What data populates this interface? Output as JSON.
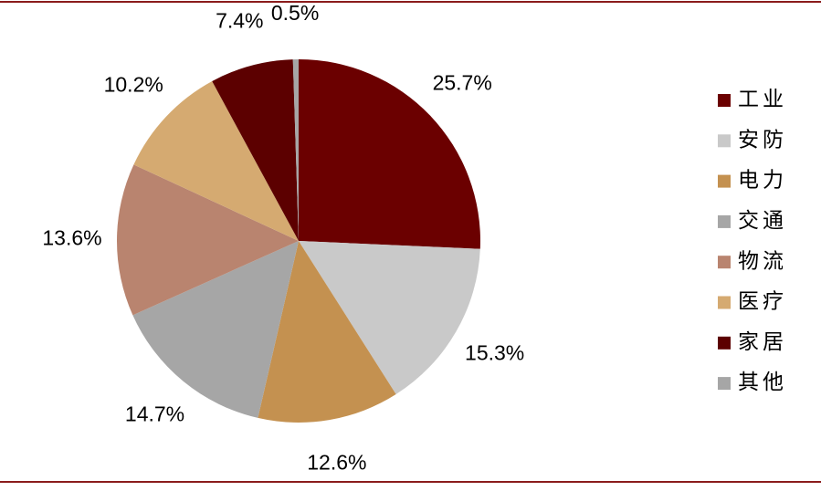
{
  "chart_data": {
    "type": "pie",
    "categories": [
      "工业",
      "安防",
      "电力",
      "交通",
      "物流",
      "医疗",
      "家居",
      "其他"
    ],
    "values": [
      25.7,
      15.3,
      12.6,
      14.7,
      13.6,
      10.2,
      7.4,
      0.5
    ],
    "value_labels": [
      "25.7%",
      "15.3%",
      "12.6%",
      "14.7%",
      "13.6%",
      "10.2%",
      "7.4%",
      "0.5%"
    ],
    "colors": [
      "#6b0000",
      "#c9c9c9",
      "#c49150",
      "#a6a6a6",
      "#b9846f",
      "#d5aa71",
      "#5c0000",
      "#a6a6a6"
    ],
    "legend": "right"
  }
}
